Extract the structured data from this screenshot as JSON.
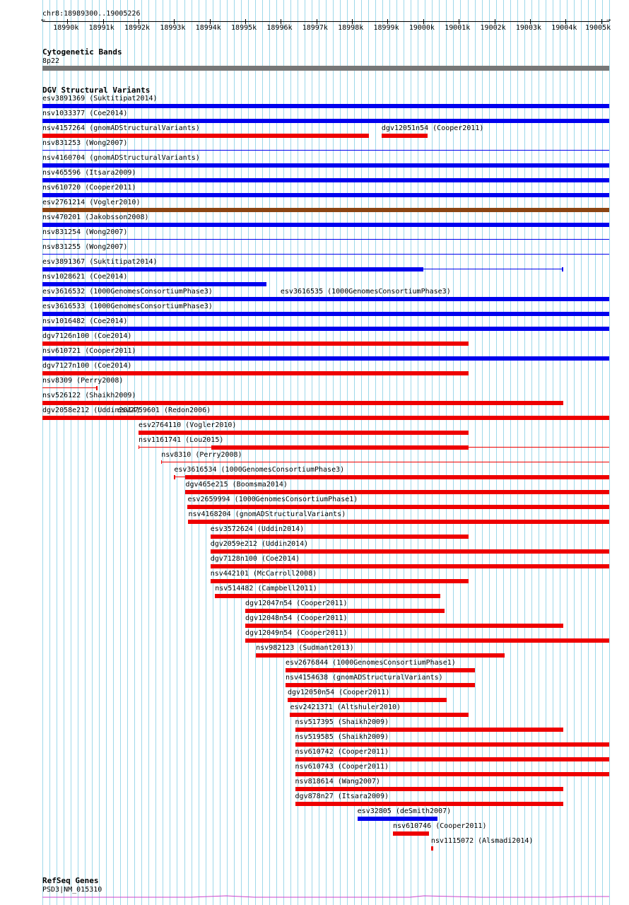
{
  "position": "chr8:18989300..19005226",
  "ruler_ticks": [
    "18990k",
    "18991k",
    "18992k",
    "18993k",
    "18994k",
    "18995k",
    "18996k",
    "18997k",
    "18998k",
    "18999k",
    "19000k",
    "19001k",
    "19002k",
    "19003k",
    "19004k",
    "19005k"
  ],
  "tracks": {
    "cytoband": {
      "title": "Cytogenetic Bands",
      "band": "8p22"
    },
    "dgv": {
      "title": "DGV Structural Variants"
    },
    "refseq": {
      "title": "RefSeq Genes",
      "gene": "PSD3|NM_015310"
    }
  },
  "colors": {
    "gain": "#0000ee",
    "loss": "#ee0000",
    "gain_loss": "#8b4513",
    "cytoband": "#777777",
    "gene": "#cc44cc",
    "grid": "#9ed8ea"
  },
  "variants": [
    {
      "name": "esv3891369 (Suktitipat2014)",
      "start": 18989300,
      "end": 19005226,
      "type": "gain"
    },
    {
      "name": "nsv1033377 (Coe2014)",
      "start": 18989300,
      "end": 19005226,
      "type": "gain"
    },
    {
      "name": "nsv4157264 (gnomADStructuralVariants)",
      "start": 18989300,
      "end": 18998480,
      "type": "loss"
    },
    {
      "name": "dgv12051n54 (Cooper2011)",
      "start": 18998830,
      "end": 19000130,
      "type": "loss",
      "row": 2
    },
    {
      "name": "nsv831253 (Wong2007)",
      "start": 18989300,
      "end": 19005226,
      "type": "gain",
      "thin": true
    },
    {
      "name": "nsv4160704 (gnomADStructuralVariants)",
      "start": 18989300,
      "end": 19005226,
      "type": "gain"
    },
    {
      "name": "nsv465596 (Itsara2009)",
      "start": 18989300,
      "end": 19005226,
      "type": "gain"
    },
    {
      "name": "nsv610720 (Cooper2011)",
      "start": 18989300,
      "end": 19005226,
      "type": "gain"
    },
    {
      "name": "esv2761214 (Vogler2010)",
      "start": 18989300,
      "end": 19005226,
      "type": "gain_loss"
    },
    {
      "name": "nsv470201 (Jakobsson2008)",
      "start": 18989300,
      "end": 19005226,
      "type": "gain"
    },
    {
      "name": "nsv831254 (Wong2007)",
      "start": 18989300,
      "end": 19005226,
      "type": "gain",
      "thin": true
    },
    {
      "name": "nsv831255 (Wong2007)",
      "start": 18989300,
      "end": 19005226,
      "type": "gain",
      "thin": true
    },
    {
      "name": "esv3891367 (Suktitipat2014)",
      "start": 18989300,
      "end": 19003940,
      "type": "gain",
      "solid_end": 19000000
    },
    {
      "name": "nsv1028621 (Coe2014)",
      "start": 18989300,
      "end": 18995600,
      "type": "gain"
    },
    {
      "name": "esv3616535 (1000GenomesConsortiumPhase3)",
      "start": 18995990,
      "end": 19001730,
      "type": "loss",
      "row": 13,
      "solid_start": 18996050,
      "solid_end": 19001630
    },
    {
      "name": "esv3616532 (1000GenomesConsortiumPhase3)",
      "start": 18989300,
      "end": 19005226,
      "type": "gain"
    },
    {
      "name": "esv3616533 (1000GenomesConsortiumPhase3)",
      "start": 18989300,
      "end": 19005226,
      "type": "gain"
    },
    {
      "name": "nsv1016482 (Coe2014)",
      "start": 18989300,
      "end": 19005226,
      "type": "gain"
    },
    {
      "name": "dgv7126n100 (Coe2014)",
      "start": 18989300,
      "end": 19001280,
      "type": "loss"
    },
    {
      "name": "nsv610721 (Cooper2011)",
      "start": 18989300,
      "end": 19005226,
      "type": "gain"
    },
    {
      "name": "dgv7127n100 (Coe2014)",
      "start": 18989300,
      "end": 19001280,
      "type": "loss"
    },
    {
      "name": "nsv8309 (Perry2008)",
      "start": 18989300,
      "end": 18990850,
      "type": "loss",
      "thin": true
    },
    {
      "name": "esv2759601 (Redon2006)",
      "start": 18991400,
      "end": 19005226,
      "type": "loss",
      "row": 21
    },
    {
      "name": "nsv526122 (Shaikh2009)",
      "start": 18989300,
      "end": 19003940,
      "type": "loss"
    },
    {
      "name": "dgv2058e212 (Uddin2014)",
      "start": 18989300,
      "end": 19005226,
      "type": "loss"
    },
    {
      "name": "esv2764110 (Vogler2010)",
      "start": 18992000,
      "end": 19001280,
      "type": "loss"
    },
    {
      "name": "nsv1161741 (Lou2015)",
      "start": 18992000,
      "end": 19005226,
      "type": "loss",
      "thin": true,
      "segment": [
        18994040,
        19001280
      ]
    },
    {
      "name": "nsv8310 (Perry2008)",
      "start": 18992640,
      "end": 19005226,
      "type": "loss",
      "thin": true
    },
    {
      "name": "esv3616534 (1000GenomesConsortiumPhase3)",
      "start": 18993000,
      "end": 19005226,
      "type": "loss",
      "solid_start": 18993320
    },
    {
      "name": "dgv465e215 (Boomsma2014)",
      "start": 18993320,
      "end": 19005226,
      "type": "loss"
    },
    {
      "name": "esv2659994 (1000GenomesConsortiumPhase1)",
      "start": 18993380,
      "end": 19005226,
      "type": "loss"
    },
    {
      "name": "nsv4168204 (gnomADStructuralVariants)",
      "start": 18993400,
      "end": 19005226,
      "type": "loss"
    },
    {
      "name": "esv3572624 (Uddin2014)",
      "start": 18994020,
      "end": 19001280,
      "type": "loss"
    },
    {
      "name": "dgv2059e212 (Uddin2014)",
      "start": 18994020,
      "end": 19005226,
      "type": "loss"
    },
    {
      "name": "dgv7128n100 (Coe2014)",
      "start": 18994020,
      "end": 19005226,
      "type": "loss"
    },
    {
      "name": "nsv442101 (McCarroll2008)",
      "start": 18994020,
      "end": 19001280,
      "type": "loss"
    },
    {
      "name": "nsv514482 (Campbell2011)",
      "start": 18994150,
      "end": 19000480,
      "type": "loss"
    },
    {
      "name": "dgv12047n54 (Cooper2011)",
      "start": 18995000,
      "end": 19000600,
      "type": "loss"
    },
    {
      "name": "dgv12048n54 (Cooper2011)",
      "start": 18995000,
      "end": 19003940,
      "type": "loss"
    },
    {
      "name": "dgv12049n54 (Cooper2011)",
      "start": 18995000,
      "end": 19005226,
      "type": "loss"
    },
    {
      "name": "nsv982123 (Sudmant2013)",
      "start": 18995300,
      "end": 19002290,
      "type": "loss"
    },
    {
      "name": "esv2676844 (1000GenomesConsortiumPhase1)",
      "start": 18996130,
      "end": 19001460,
      "type": "loss"
    },
    {
      "name": "nsv4154638 (gnomADStructuralVariants)",
      "start": 18996130,
      "end": 19001460,
      "type": "loss"
    },
    {
      "name": "dgv12050n54 (Cooper2011)",
      "start": 18996190,
      "end": 19000650,
      "type": "loss"
    },
    {
      "name": "esv2421371 (Altshuler2010)",
      "start": 18996260,
      "end": 19001280,
      "type": "loss"
    },
    {
      "name": "nsv517395 (Shaikh2009)",
      "start": 18996400,
      "end": 19003940,
      "type": "loss"
    },
    {
      "name": "nsv519585 (Shaikh2009)",
      "start": 18996400,
      "end": 19005226,
      "type": "loss"
    },
    {
      "name": "nsv610742 (Cooper2011)",
      "start": 18996400,
      "end": 19005226,
      "type": "loss"
    },
    {
      "name": "nsv610743 (Cooper2011)",
      "start": 18996400,
      "end": 19005226,
      "type": "loss"
    },
    {
      "name": "nsv818614 (Wang2007)",
      "start": 18996400,
      "end": 19003940,
      "type": "loss"
    },
    {
      "name": "dgv878n27 (Itsara2009)",
      "start": 18996400,
      "end": 19003940,
      "type": "loss"
    },
    {
      "name": "esv32805 (deSmith2007)",
      "start": 18998150,
      "end": 19000400,
      "type": "gain"
    },
    {
      "name": "nsv610746 (Cooper2011)",
      "start": 18999150,
      "end": 19000170,
      "type": "loss"
    },
    {
      "name": "nsv1115072 (Alsmadi2014)",
      "start": 19000220,
      "end": 19000290,
      "type": "loss"
    }
  ]
}
